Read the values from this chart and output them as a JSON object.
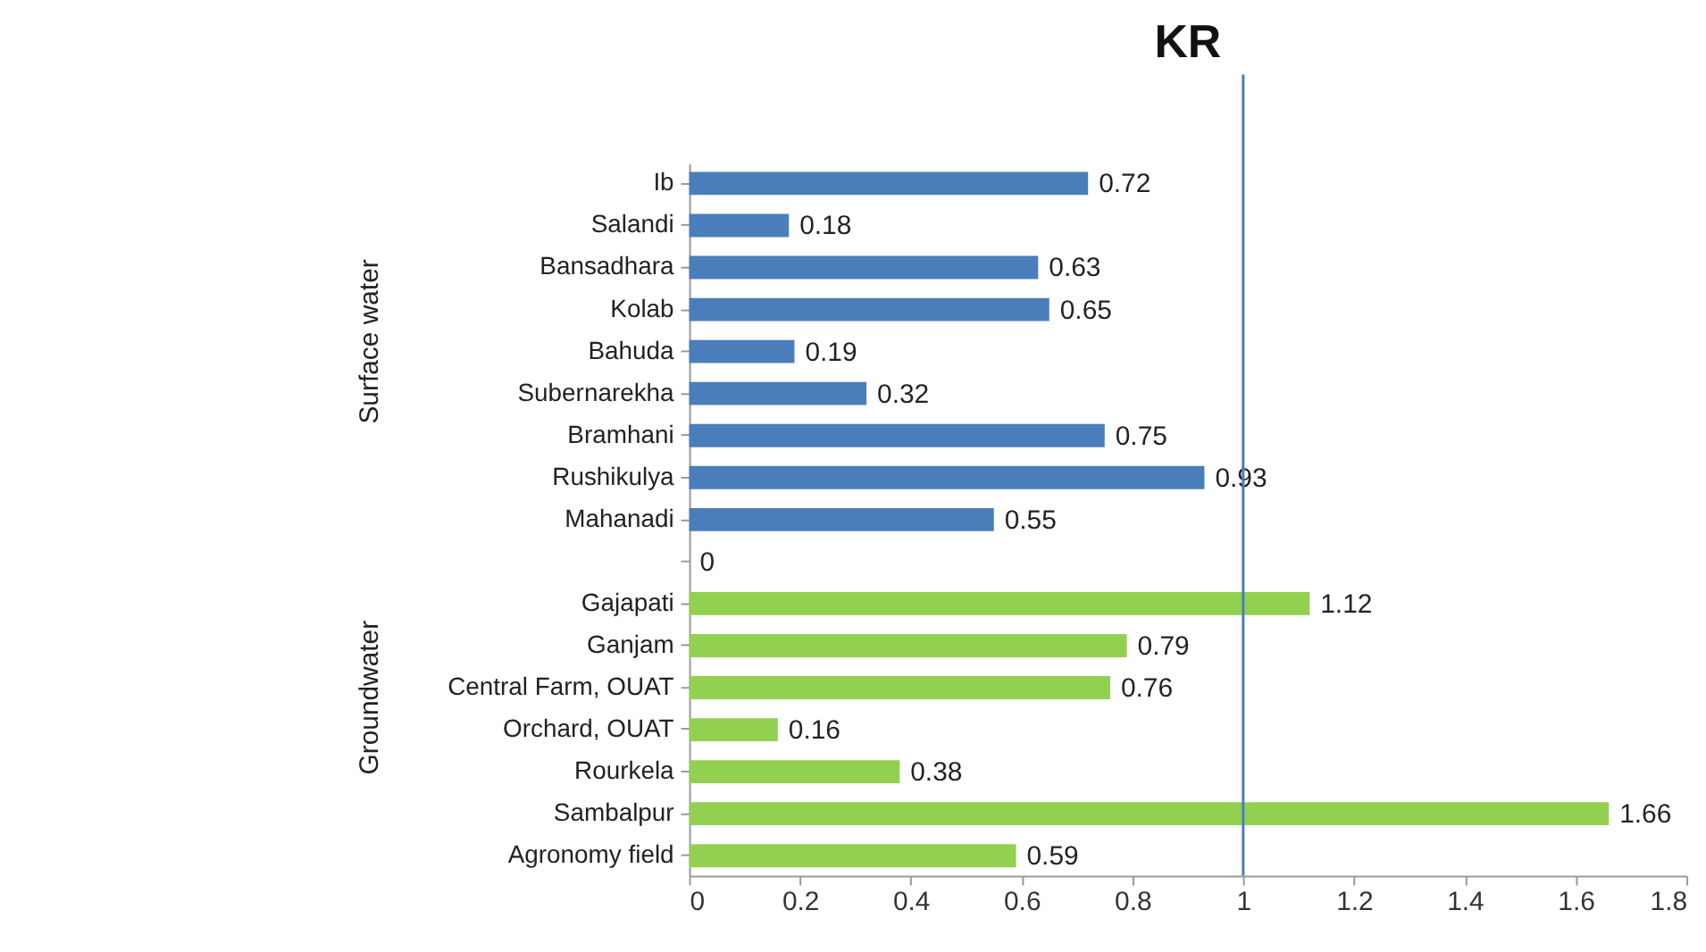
{
  "chart_data": {
    "type": "bar",
    "orientation": "horizontal",
    "title": "KR",
    "categories": [
      "Ib",
      "Salandi",
      "Bansadhara",
      "Kolab",
      "Bahuda",
      "Subernarekha",
      "Bramhani",
      "Rushikulya",
      "Mahanadi",
      null,
      "Gajapati",
      "Ganjam",
      "Central Farm, OUAT",
      "Orchard, OUAT",
      "Rourkela",
      "Sambalpur",
      "Agronomy  field"
    ],
    "values": [
      0.72,
      0.18,
      0.63,
      0.65,
      0.19,
      0.32,
      0.75,
      0.93,
      0.55,
      0,
      1.12,
      0.79,
      0.76,
      0.16,
      0.38,
      1.66,
      0.59
    ],
    "colors": [
      "#4a7ebb",
      "#4a7ebb",
      "#4a7ebb",
      "#4a7ebb",
      "#4a7ebb",
      "#4a7ebb",
      "#4a7ebb",
      "#4a7ebb",
      "#4a7ebb",
      "#92d050",
      "#92d050",
      "#92d050",
      "#92d050",
      "#92d050",
      "#92d050",
      "#92d050",
      "#92d050"
    ],
    "xlim": [
      0,
      1.8
    ],
    "xticks": [
      0,
      0.2,
      0.4,
      0.6,
      0.8,
      1,
      1.2,
      1.4,
      1.6,
      1.8
    ],
    "ref_lines": [
      {
        "axis": "x",
        "value": 1,
        "color": "#4a7ebb"
      }
    ],
    "annotations": [
      "Surface water",
      "Groundwater"
    ],
    "data_labels": true,
    "grid": false
  }
}
